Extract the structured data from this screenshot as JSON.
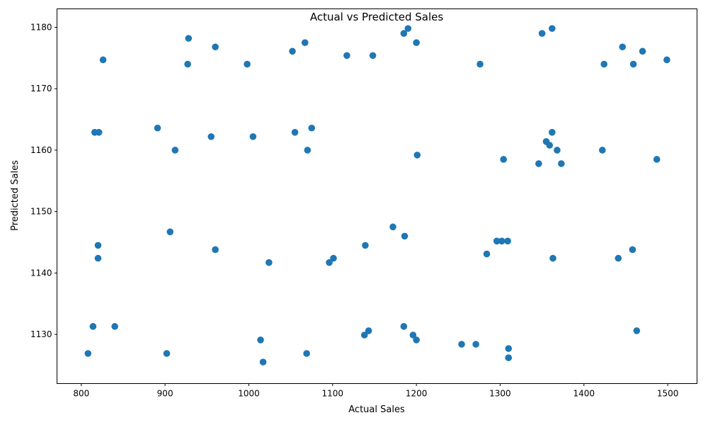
{
  "chart_data": {
    "type": "scatter",
    "title": "Actual vs Predicted Sales",
    "xlabel": "Actual Sales",
    "ylabel": "Predicted Sales",
    "xlim": [
      771,
      1535
    ],
    "ylim": [
      1122,
      1183
    ],
    "xticks": [
      800,
      900,
      1000,
      1100,
      1200,
      1300,
      1400,
      1500
    ],
    "yticks": [
      1130,
      1140,
      1150,
      1160,
      1170,
      1180
    ],
    "grid": false,
    "marker_color": "#1f77b4",
    "points": [
      {
        "x": 826,
        "y": 1174.7
      },
      {
        "x": 928,
        "y": 1178.2
      },
      {
        "x": 927,
        "y": 1174.0
      },
      {
        "x": 960,
        "y": 1176.8
      },
      {
        "x": 998,
        "y": 1174.0
      },
      {
        "x": 1052,
        "y": 1176.1
      },
      {
        "x": 1067,
        "y": 1177.5
      },
      {
        "x": 1117,
        "y": 1175.4
      },
      {
        "x": 1148,
        "y": 1175.4
      },
      {
        "x": 1185,
        "y": 1179.0
      },
      {
        "x": 1190,
        "y": 1179.8
      },
      {
        "x": 1200,
        "y": 1177.5
      },
      {
        "x": 1276,
        "y": 1174.0
      },
      {
        "x": 1350,
        "y": 1179.0
      },
      {
        "x": 1362,
        "y": 1179.8
      },
      {
        "x": 1446,
        "y": 1176.8
      },
      {
        "x": 1424,
        "y": 1174.0
      },
      {
        "x": 1470,
        "y": 1176.1
      },
      {
        "x": 1459,
        "y": 1174.0
      },
      {
        "x": 1499,
        "y": 1174.7
      },
      {
        "x": 816,
        "y": 1162.9
      },
      {
        "x": 821,
        "y": 1162.9
      },
      {
        "x": 891,
        "y": 1163.6
      },
      {
        "x": 912,
        "y": 1160.0
      },
      {
        "x": 955,
        "y": 1162.2
      },
      {
        "x": 1005,
        "y": 1162.2
      },
      {
        "x": 1055,
        "y": 1162.9
      },
      {
        "x": 1075,
        "y": 1163.6
      },
      {
        "x": 1070,
        "y": 1160.0
      },
      {
        "x": 1201,
        "y": 1159.2
      },
      {
        "x": 1304,
        "y": 1158.5
      },
      {
        "x": 1346,
        "y": 1157.8
      },
      {
        "x": 1362,
        "y": 1162.9
      },
      {
        "x": 1355,
        "y": 1161.4
      },
      {
        "x": 1359,
        "y": 1160.8
      },
      {
        "x": 1368,
        "y": 1160.0
      },
      {
        "x": 1373,
        "y": 1157.8
      },
      {
        "x": 1422,
        "y": 1160.0
      },
      {
        "x": 1487,
        "y": 1158.5
      },
      {
        "x": 906,
        "y": 1146.7
      },
      {
        "x": 820,
        "y": 1144.5
      },
      {
        "x": 820,
        "y": 1142.4
      },
      {
        "x": 960,
        "y": 1143.8
      },
      {
        "x": 1024,
        "y": 1141.7
      },
      {
        "x": 1101,
        "y": 1142.4
      },
      {
        "x": 1096,
        "y": 1141.7
      },
      {
        "x": 1139,
        "y": 1144.5
      },
      {
        "x": 1172,
        "y": 1147.5
      },
      {
        "x": 1186,
        "y": 1146.0
      },
      {
        "x": 1284,
        "y": 1143.1
      },
      {
        "x": 1296,
        "y": 1145.2
      },
      {
        "x": 1302,
        "y": 1145.2
      },
      {
        "x": 1309,
        "y": 1145.2
      },
      {
        "x": 1363,
        "y": 1142.4
      },
      {
        "x": 1441,
        "y": 1142.4
      },
      {
        "x": 1458,
        "y": 1143.8
      },
      {
        "x": 814,
        "y": 1131.3
      },
      {
        "x": 840,
        "y": 1131.3
      },
      {
        "x": 808,
        "y": 1126.9
      },
      {
        "x": 902,
        "y": 1126.9
      },
      {
        "x": 1014,
        "y": 1129.1
      },
      {
        "x": 1017,
        "y": 1125.5
      },
      {
        "x": 1069,
        "y": 1126.9
      },
      {
        "x": 1138,
        "y": 1129.9
      },
      {
        "x": 1143,
        "y": 1130.6
      },
      {
        "x": 1185,
        "y": 1131.3
      },
      {
        "x": 1196,
        "y": 1129.9
      },
      {
        "x": 1200,
        "y": 1129.1
      },
      {
        "x": 1254,
        "y": 1128.4
      },
      {
        "x": 1271,
        "y": 1128.4
      },
      {
        "x": 1310,
        "y": 1127.7
      },
      {
        "x": 1310,
        "y": 1126.2
      },
      {
        "x": 1463,
        "y": 1130.6
      }
    ]
  }
}
